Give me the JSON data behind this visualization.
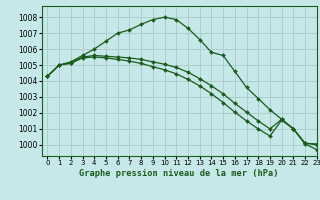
{
  "title": "Graphe pression niveau de la mer (hPa)",
  "bg_color": "#c6e8e8",
  "grid_color": "#aecece",
  "line_color": "#1a5c1a",
  "xlim": [
    -0.5,
    23
  ],
  "ylim": [
    999.3,
    1008.7
  ],
  "yticks": [
    1000,
    1001,
    1002,
    1003,
    1004,
    1005,
    1006,
    1007,
    1008
  ],
  "xticks": [
    0,
    1,
    2,
    3,
    4,
    5,
    6,
    7,
    8,
    9,
    10,
    11,
    12,
    13,
    14,
    15,
    16,
    17,
    18,
    19,
    20,
    21,
    22,
    23
  ],
  "series": [
    [
      1004.3,
      1005.0,
      1005.2,
      1005.6,
      1006.0,
      1006.5,
      1007.0,
      1007.2,
      1007.55,
      1007.85,
      1008.0,
      1007.85,
      1007.3,
      1006.6,
      1005.8,
      1005.6,
      1004.6,
      1003.6,
      1002.9,
      1002.2,
      1001.6,
      1001.0,
      1000.05,
      999.7
    ],
    [
      1004.3,
      1005.0,
      1005.15,
      1005.5,
      1005.6,
      1005.55,
      1005.5,
      1005.45,
      1005.35,
      1005.2,
      1005.05,
      1004.85,
      1004.55,
      1004.15,
      1003.7,
      1003.2,
      1002.6,
      1002.05,
      1001.5,
      1001.0,
      1001.6,
      1001.0,
      1000.1,
      1000.0
    ],
    [
      1004.3,
      1005.0,
      1005.1,
      1005.45,
      1005.5,
      1005.45,
      1005.35,
      1005.25,
      1005.1,
      1004.9,
      1004.7,
      1004.45,
      1004.1,
      1003.7,
      1003.2,
      1002.65,
      1002.05,
      1001.5,
      1001.0,
      1000.55,
      1001.55,
      1001.0,
      1000.1,
      1000.05
    ]
  ]
}
